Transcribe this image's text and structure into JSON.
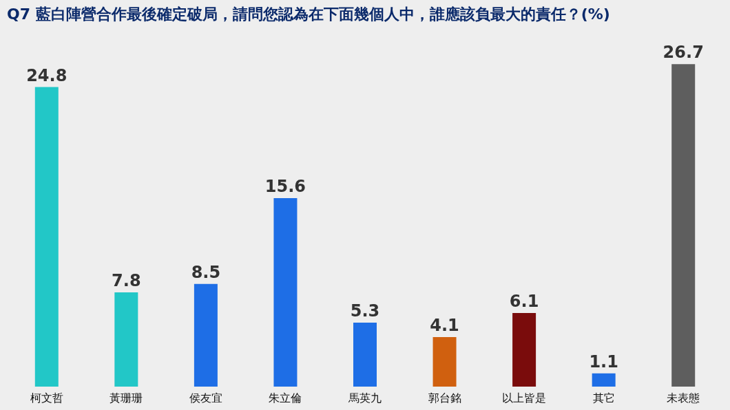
{
  "chart_data": {
    "type": "bar",
    "title": "Q7 藍白陣營合作最後確定破局，請問您認為在下面幾個人中，誰應該負最大的責任？(%)",
    "categories": [
      "柯文哲",
      "黃珊珊",
      "侯友宜",
      "朱立倫",
      "馬英九",
      "郭台銘",
      "以上皆是",
      "其它",
      "未表態"
    ],
    "values": [
      24.8,
      7.8,
      8.5,
      15.6,
      5.3,
      4.1,
      6.1,
      1.1,
      26.7
    ],
    "colors": [
      "#22c7c7",
      "#22c7c7",
      "#1e6ee6",
      "#1e6ee6",
      "#1e6ee6",
      "#d0600f",
      "#7a0c0c",
      "#1e6ee6",
      "#5e5e5e"
    ],
    "data_labels": true
  }
}
